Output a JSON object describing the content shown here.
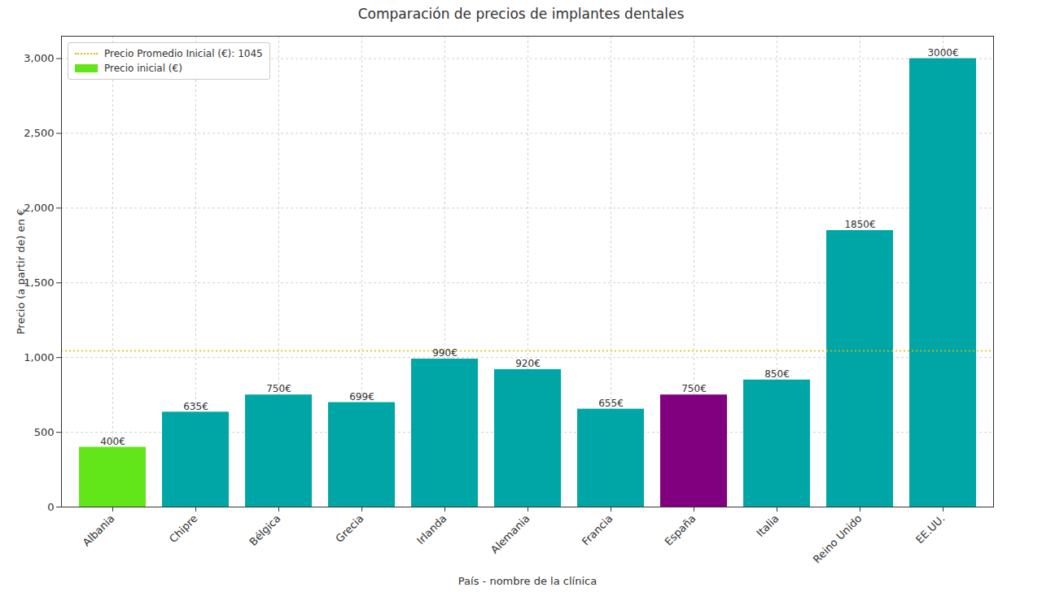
{
  "chart_data": {
    "type": "bar",
    "title": "Comparación de precios de implantes dentales",
    "xlabel": "País - nombre de la clínica",
    "ylabel": "Precio (a partir de) en €",
    "categories": [
      "Albania",
      "Chipre",
      "Bélgica",
      "Grecia",
      "Irlanda",
      "Alemania",
      "Francia",
      "España",
      "Italia",
      "Reino Unido",
      "EE.UU."
    ],
    "series": [
      {
        "name": "Precio inicial (€)",
        "values": [
          400,
          635,
          750,
          699,
          990,
          920,
          655,
          750,
          850,
          1850,
          3000
        ],
        "value_labels": [
          "400€",
          "635€",
          "750€",
          "699€",
          "990€",
          "920€",
          "655€",
          "750€",
          "850€",
          "1850€",
          "3000€"
        ],
        "colors": [
          "#62e61a",
          "#00a6a6",
          "#00a6a6",
          "#00a6a6",
          "#00a6a6",
          "#00a6a6",
          "#00a6a6",
          "#800080",
          "#00a6a6",
          "#00a6a6",
          "#00a6a6"
        ]
      }
    ],
    "average": {
      "name": "Precio Promedio Inicial (€): 1045",
      "value": 1045,
      "color": "#e6b800",
      "line_style": "dotted"
    },
    "ylim": [
      0,
      3150
    ],
    "yticks": [
      0,
      500,
      1000,
      1500,
      2000,
      2500,
      3000
    ],
    "grid": true,
    "legend": "upper left",
    "data_labels": true
  }
}
